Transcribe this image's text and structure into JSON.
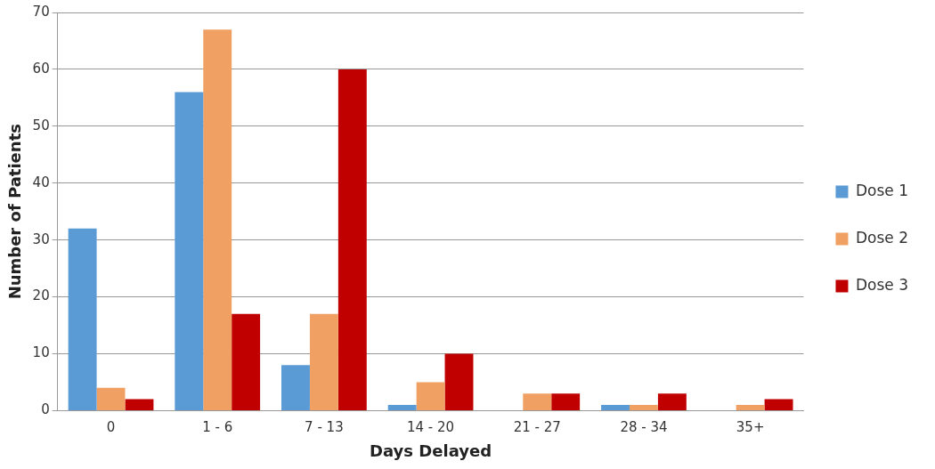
{
  "chart_data": {
    "type": "bar",
    "xlabel": "Days Delayed",
    "ylabel": "Number of Patients",
    "categories": [
      "0",
      "1 - 6",
      "7 - 13",
      "14 - 20",
      "21 - 27",
      "28 - 34",
      "35+"
    ],
    "series": [
      {
        "name": "Dose 1",
        "color": "#5b9bd5",
        "values": [
          32,
          56,
          8,
          1,
          0,
          1,
          0
        ]
      },
      {
        "name": "Dose 2",
        "color": "#f1a063",
        "values": [
          4,
          67,
          17,
          5,
          3,
          1,
          1
        ]
      },
      {
        "name": "Dose 3",
        "color": "#c00000",
        "values": [
          2,
          17,
          60,
          10,
          3,
          3,
          2
        ]
      }
    ],
    "ylim": [
      0,
      70
    ],
    "yticks": [
      0,
      10,
      20,
      30,
      40,
      50,
      60,
      70
    ],
    "grid": "y",
    "legend": "right"
  }
}
